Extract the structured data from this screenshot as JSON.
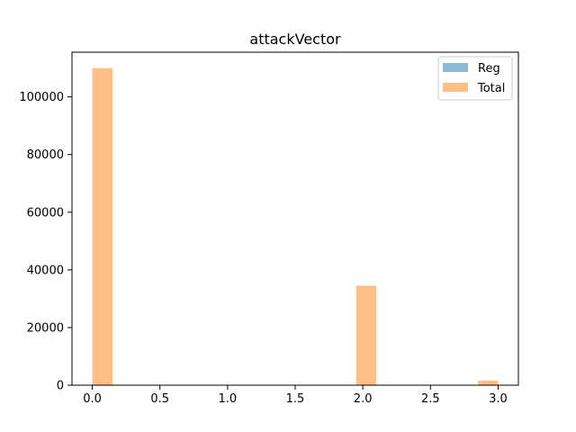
{
  "chart_data": {
    "type": "bar",
    "title": "attackVector",
    "xlabel": "",
    "ylabel": "",
    "xlim": [
      -0.15,
      3.15
    ],
    "ylim": [
      0,
      115500
    ],
    "xticks": [
      0.0,
      0.5,
      1.0,
      1.5,
      2.0,
      2.5,
      3.0
    ],
    "xtick_labels": [
      "0.0",
      "0.5",
      "1.0",
      "1.5",
      "2.0",
      "2.5",
      "3.0"
    ],
    "yticks": [
      0,
      20000,
      40000,
      60000,
      80000,
      100000
    ],
    "ytick_labels": [
      "0",
      "20000",
      "40000",
      "60000",
      "80000",
      "100000"
    ],
    "bin_width": 0.15,
    "grid": false,
    "legend_position": "top-right",
    "series": [
      {
        "name": "Reg",
        "color": "#8ebad9",
        "bins": []
      },
      {
        "name": "Total",
        "color": "#ffbf86",
        "bins": [
          {
            "x0": 0.0,
            "x1": 0.15,
            "value": 110000
          },
          {
            "x0": 1.95,
            "x1": 2.1,
            "value": 34500
          },
          {
            "x0": 2.85,
            "x1": 3.0,
            "value": 1600
          }
        ]
      }
    ]
  }
}
